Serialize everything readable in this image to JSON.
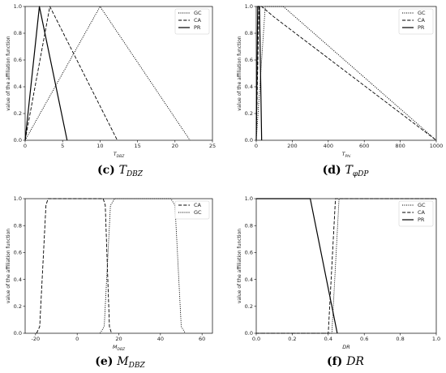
{
  "chart_data": [
    {
      "type": "line",
      "caption": {
        "label": "(c)",
        "var": "T",
        "sub": "DBZ"
      },
      "xlabel": {
        "main": "T",
        "sub": "DBZ"
      },
      "ylabel": "value of the affiliation function",
      "xlim": [
        0,
        25
      ],
      "ylim": [
        0,
        1.0
      ],
      "xticks": [
        0,
        5,
        10,
        15,
        20,
        25
      ],
      "yticks": [
        0.0,
        0.2,
        0.4,
        0.6,
        0.8,
        1.0
      ],
      "legend_position": "top-right",
      "series": [
        {
          "name": "GC",
          "style": "dotted",
          "x": [
            0,
            10,
            22
          ],
          "y": [
            0,
            1,
            0
          ]
        },
        {
          "name": "CA",
          "style": "dashed",
          "x": [
            0,
            3.3,
            12.3
          ],
          "y": [
            0,
            1,
            0
          ]
        },
        {
          "name": "PR",
          "style": "solid",
          "x": [
            0,
            1.9,
            5.6
          ],
          "y": [
            0,
            1,
            0
          ]
        }
      ]
    },
    {
      "type": "line",
      "caption": {
        "label": "(d)",
        "var": "T",
        "sub": "φDP"
      },
      "xlabel": {
        "main": "T",
        "sub": "Phi"
      },
      "ylabel": "value of the affiliation function",
      "xlim": [
        0,
        1000
      ],
      "ylim": [
        0,
        1.0
      ],
      "xticks": [
        0,
        200,
        400,
        600,
        800,
        1000
      ],
      "yticks": [
        0.0,
        0.2,
        0.4,
        0.6,
        0.8,
        1.0
      ],
      "legend_position": "top-right",
      "series": [
        {
          "name": "GC",
          "style": "dotted",
          "x": [
            0,
            50,
            150,
            1000
          ],
          "y": [
            0,
            1,
            1,
            0
          ]
        },
        {
          "name": "CA",
          "style": "dashed",
          "x": [
            0,
            15,
            30,
            100,
            1000
          ],
          "y": [
            0,
            1,
            1,
            0.92,
            0
          ]
        },
        {
          "name": "PR",
          "style": "solid",
          "x": [
            0,
            8,
            18,
            30
          ],
          "y": [
            0,
            1,
            1,
            0
          ]
        }
      ]
    },
    {
      "type": "line",
      "caption": {
        "label": "(e)",
        "var": "M",
        "sub": "DBZ"
      },
      "xlabel": {
        "main": "M",
        "sub": "DBZ"
      },
      "ylabel": "value of the affiliation function",
      "xlim": [
        -25,
        65
      ],
      "ylim": [
        0,
        1.0
      ],
      "xticks": [
        -20,
        0,
        20,
        40,
        60
      ],
      "yticks": [
        0.0,
        0.2,
        0.4,
        0.6,
        0.8,
        1.0
      ],
      "legend_position": "top-right",
      "series": [
        {
          "name": "CA",
          "style": "dashed",
          "x": [
            -19.5,
            -18,
            -16.5,
            -15,
            -14,
            12.5,
            13.5,
            14.5,
            15.5,
            16.5
          ],
          "y": [
            0,
            0.05,
            0.5,
            0.95,
            1,
            1,
            0.95,
            0.5,
            0.05,
            0
          ]
        },
        {
          "name": "GC",
          "style": "dotted",
          "x": [
            11,
            13,
            14.5,
            16,
            18,
            45,
            47,
            48.5,
            50,
            52
          ],
          "y": [
            0,
            0.05,
            0.5,
            0.95,
            1,
            1,
            0.95,
            0.5,
            0.05,
            0
          ]
        }
      ]
    },
    {
      "type": "line",
      "caption": {
        "label": "(f)",
        "var": "DR",
        "sub": ""
      },
      "xlabel": {
        "main": "DR",
        "sub": ""
      },
      "ylabel": "value of the affiliation function",
      "xlim": [
        0,
        1.0
      ],
      "ylim": [
        0,
        1.0
      ],
      "xticks": [
        0.0,
        0.2,
        0.4,
        0.6,
        0.8,
        1.0
      ],
      "yticks": [
        0.0,
        0.2,
        0.4,
        0.6,
        0.8,
        1.0
      ],
      "legend_position": "top-right",
      "series": [
        {
          "name": "GC",
          "style": "dotted",
          "x": [
            0,
            0.42,
            0.46,
            1.0
          ],
          "y": [
            0,
            0,
            1,
            1
          ]
        },
        {
          "name": "CA",
          "style": "dashed",
          "x": [
            0,
            0.4,
            0.44,
            1.0
          ],
          "y": [
            0,
            0,
            1,
            1
          ]
        },
        {
          "name": "PR",
          "style": "solid",
          "x": [
            0,
            0.3,
            0.45
          ],
          "y": [
            1,
            1,
            0
          ]
        }
      ]
    }
  ]
}
